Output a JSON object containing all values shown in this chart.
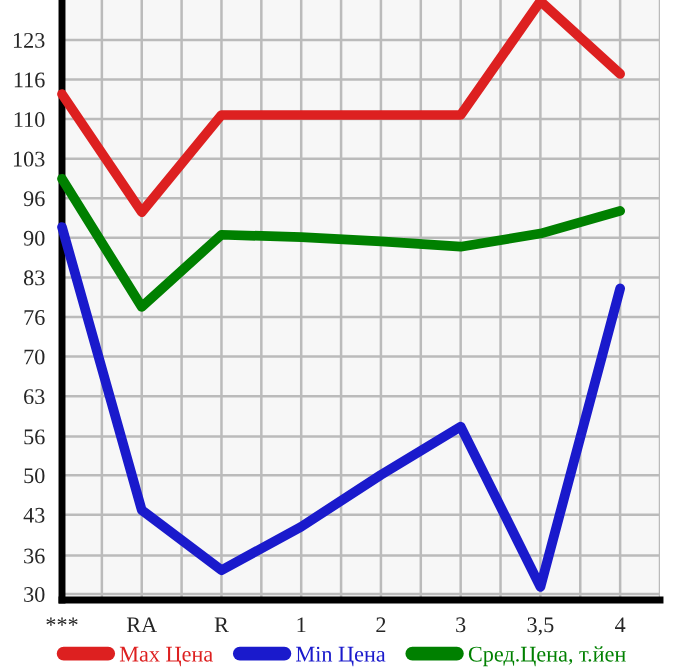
{
  "chart_data": {
    "type": "line",
    "categories": [
      "***",
      "RA",
      "R",
      "1",
      "2",
      "3",
      "3,5",
      "4"
    ],
    "series": [
      {
        "name": "Max Цена",
        "color": "#dd2020",
        "values": [
          113.9,
          94.1,
          110.4,
          110.4,
          110.4,
          110.4,
          129.5,
          117.3
        ]
      },
      {
        "name": "Min Цена",
        "color": "#1a1acc",
        "values": [
          91.6,
          44.1,
          34.0,
          41.3,
          50.0,
          58.1,
          31.2,
          81.3
        ]
      },
      {
        "name": "Сред.Цена, т.йен",
        "color": "#008000",
        "values": [
          99.7,
          78.2,
          90.3,
          89.9,
          89.2,
          88.3,
          90.5,
          94.3
        ]
      }
    ],
    "ylim": [
      29,
      129.7
    ],
    "yticks": [
      {
        "value": 30,
        "label": "30"
      },
      {
        "value": 36.45,
        "label": "36"
      },
      {
        "value": 43.29,
        "label": "43"
      },
      {
        "value": 49.93,
        "label": "50"
      },
      {
        "value": 56.45,
        "label": "56"
      },
      {
        "value": 63.21,
        "label": "63"
      },
      {
        "value": 69.86,
        "label": "70"
      },
      {
        "value": 76.5,
        "label": "76"
      },
      {
        "value": 83.14,
        "label": "83"
      },
      {
        "value": 89.79,
        "label": "90"
      },
      {
        "value": 96.43,
        "label": "96"
      },
      {
        "value": 103.07,
        "label": "103"
      },
      {
        "value": 109.71,
        "label": "110"
      },
      {
        "value": 116.36,
        "label": "116"
      },
      {
        "value": 123,
        "label": "123"
      }
    ],
    "grid": true,
    "legend": "bottom",
    "marker": "none",
    "line_style": "solid"
  }
}
